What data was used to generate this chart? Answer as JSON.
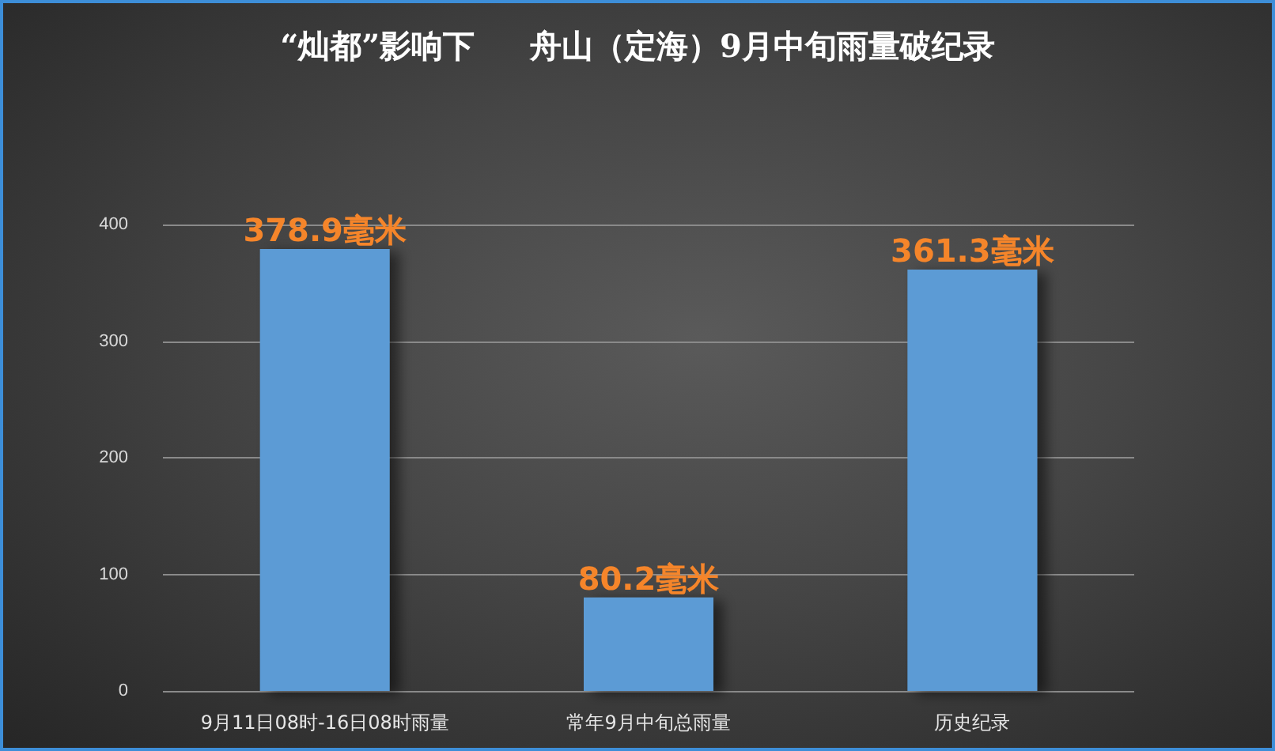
{
  "chart_data": {
    "type": "bar",
    "title": "“灿都”影响下     舟山（定海）9月中旬雨量破纪录",
    "categories": [
      "9月11日08时-16日08时雨量",
      "常年9月中旬总雨量",
      "历史纪录"
    ],
    "values": [
      378.9,
      80.2,
      361.3
    ],
    "color": "#5b9bd5",
    "value_labels": [
      "378.9毫米",
      "80.2毫米",
      "361.3毫米"
    ],
    "ylim": [
      0,
      400
    ],
    "yticks": [
      0,
      100,
      200,
      300,
      400
    ],
    "grid": "y"
  }
}
